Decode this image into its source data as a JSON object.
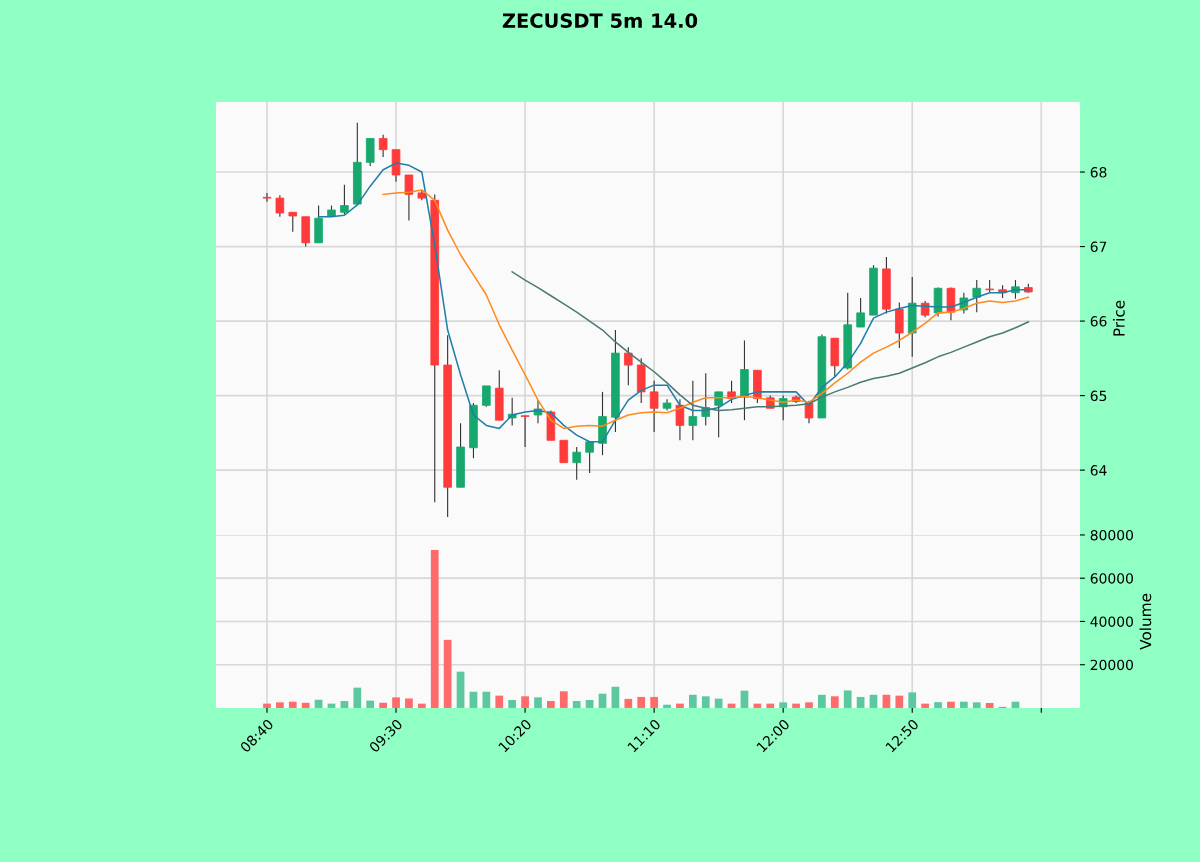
{
  "chart_data": [
    {
      "type": "candlestick",
      "title": "ZECUSDT 5m 14.0",
      "ylabel": "Price",
      "grid": true,
      "tick_labels": "y",
      "x": [
        8.6667,
        8.75,
        8.8333,
        8.9167,
        9,
        9.0833,
        9.1667,
        9.25,
        9.3333,
        9.4167,
        9.5,
        9.5833,
        9.6667,
        9.75,
        9.8333,
        9.9167,
        10,
        10.0833,
        10.1667,
        10.25,
        10.3333,
        10.4167,
        10.5,
        10.5833,
        10.6667,
        10.75,
        10.8333,
        10.9167,
        11,
        11.0833,
        11.1667,
        11.25,
        11.3333,
        11.4167,
        11.5,
        11.5833,
        11.6667,
        11.75,
        11.8333,
        11.9167,
        12,
        12.0833,
        12.1667,
        12.25,
        12.3333,
        12.4167,
        12.5,
        12.5833,
        12.6667,
        12.75,
        12.8333,
        12.9167,
        13,
        13.0833,
        13.1667,
        13.25,
        13.3333,
        13.4167,
        13.5,
        13.5833
      ],
      "ohlc": [
        [
          67.66,
          67.72,
          67.6,
          67.65
        ],
        [
          67.65,
          67.69,
          67.4,
          67.45
        ],
        [
          67.46,
          67.46,
          67.2,
          67.41
        ],
        [
          67.4,
          67.4,
          67.0,
          67.05
        ],
        [
          67.05,
          67.55,
          67.05,
          67.38
        ],
        [
          67.41,
          67.55,
          67.4,
          67.49
        ],
        [
          67.46,
          67.83,
          67.43,
          67.55
        ],
        [
          67.57,
          68.66,
          67.55,
          68.13
        ],
        [
          68.13,
          68.45,
          68.08,
          68.45
        ],
        [
          68.45,
          68.5,
          68.2,
          68.3
        ],
        [
          68.3,
          68.3,
          67.87,
          67.96
        ],
        [
          67.96,
          67.96,
          67.35,
          67.7
        ],
        [
          67.72,
          67.75,
          67.62,
          67.65
        ],
        [
          67.62,
          67.7,
          63.57,
          65.41
        ],
        [
          65.41,
          65.81,
          63.37,
          63.77
        ],
        [
          63.77,
          64.63,
          63.77,
          64.31
        ],
        [
          64.3,
          64.9,
          64.16,
          64.87
        ],
        [
          64.87,
          65.13,
          64.85,
          65.13
        ],
        [
          65.1,
          65.34,
          64.67,
          64.67
        ],
        [
          64.7,
          64.97,
          64.6,
          64.75
        ],
        [
          64.73,
          64.73,
          64.31,
          64.72
        ],
        [
          64.74,
          64.94,
          64.63,
          64.82
        ],
        [
          64.78,
          64.8,
          64.4,
          64.4
        ],
        [
          64.4,
          64.4,
          64.1,
          64.1
        ],
        [
          64.1,
          64.31,
          63.87,
          64.24
        ],
        [
          64.24,
          64.38,
          63.96,
          64.38
        ],
        [
          64.36,
          65.05,
          64.2,
          64.72
        ],
        [
          64.71,
          65.88,
          64.51,
          65.57
        ],
        [
          65.57,
          65.65,
          65.14,
          65.41
        ],
        [
          65.41,
          65.5,
          64.9,
          65.05
        ],
        [
          65.05,
          65.2,
          64.51,
          64.83
        ],
        [
          64.83,
          64.95,
          64.8,
          64.9
        ],
        [
          64.87,
          64.95,
          64.4,
          64.6
        ],
        [
          64.6,
          65.2,
          64.4,
          64.72
        ],
        [
          64.72,
          65.3,
          64.6,
          64.84
        ],
        [
          64.87,
          65.05,
          64.44,
          65.05
        ],
        [
          65.05,
          65.2,
          64.9,
          64.96
        ],
        [
          64.98,
          65.74,
          64.67,
          65.35
        ],
        [
          65.34,
          65.34,
          64.9,
          64.96
        ],
        [
          64.97,
          65.0,
          64.83,
          64.83
        ],
        [
          64.85,
          65.0,
          64.67,
          64.96
        ],
        [
          64.98,
          65.0,
          64.9,
          64.92
        ],
        [
          64.9,
          64.93,
          64.63,
          64.7
        ],
        [
          64.7,
          65.82,
          64.7,
          65.79
        ],
        [
          65.77,
          65.77,
          65.25,
          65.4
        ],
        [
          65.37,
          66.38,
          65.35,
          65.95
        ],
        [
          65.92,
          66.31,
          65.92,
          66.11
        ],
        [
          66.08,
          66.75,
          66.08,
          66.71
        ],
        [
          66.7,
          66.86,
          66.1,
          66.16
        ],
        [
          66.16,
          66.25,
          65.64,
          65.84
        ],
        [
          65.84,
          66.59,
          65.52,
          66.24
        ],
        [
          66.24,
          66.27,
          66.05,
          66.08
        ],
        [
          66.11,
          66.45,
          66.06,
          66.44
        ],
        [
          66.44,
          66.45,
          66.01,
          66.12
        ],
        [
          66.15,
          66.38,
          66.1,
          66.31
        ],
        [
          66.32,
          66.55,
          66.12,
          66.44
        ],
        [
          66.43,
          66.55,
          66.38,
          66.42
        ],
        [
          66.42,
          66.48,
          66.31,
          66.38
        ],
        [
          66.38,
          66.55,
          66.3,
          66.46
        ],
        [
          66.45,
          66.5,
          66.38,
          66.39
        ]
      ],
      "colors": [
        "#ff3a3a",
        "#ff3a3a",
        "#ff3a3a",
        "#ff3a3a",
        "#17a86e",
        "#17a86e",
        "#17a86e",
        "#17a86e",
        "#17a86e",
        "#ff3a3a",
        "#ff3a3a",
        "#ff3a3a",
        "#ff3a3a",
        "#ff3a3a",
        "#ff3a3a",
        "#17a86e",
        "#17a86e",
        "#17a86e",
        "#ff3a3a",
        "#17a86e",
        "#ff3a3a",
        "#17a86e",
        "#ff3a3a",
        "#ff3a3a",
        "#17a86e",
        "#17a86e",
        "#17a86e",
        "#17a86e",
        "#ff3a3a",
        "#ff3a3a",
        "#ff3a3a",
        "#17a86e",
        "#ff3a3a",
        "#17a86e",
        "#17a86e",
        "#17a86e",
        "#ff3a3a",
        "#17a86e",
        "#ff3a3a",
        "#ff3a3a",
        "#17a86e",
        "#ff3a3a",
        "#ff3a3a",
        "#17a86e",
        "#ff3a3a",
        "#17a86e",
        "#17a86e",
        "#17a86e",
        "#ff3a3a",
        "#ff3a3a",
        "#17a86e",
        "#ff3a3a",
        "#17a86e",
        "#ff3a3a",
        "#17a86e",
        "#17a86e",
        "#ff3a3a",
        "#ff3a3a",
        "#17a86e",
        "#ff3a3a"
      ],
      "series": [
        {
          "type": "line",
          "color": "#1f7fa8",
          "x": [
            9,
            9.0833,
            9.1667,
            9.25,
            9.3333,
            9.4167,
            9.5,
            9.5833,
            9.6667,
            9.75,
            9.8333,
            9.9167,
            10,
            10.0833,
            10.1667,
            10.25,
            10.3333,
            10.4167,
            10.5,
            10.5833,
            10.6667,
            10.75,
            10.8333,
            10.9167,
            11,
            11.0833,
            11.1667,
            11.25,
            11.3333,
            11.4167,
            11.5,
            11.5833,
            11.6667,
            11.75,
            11.8333,
            11.9167,
            12,
            12.0833,
            12.1667,
            12.25,
            12.3333,
            12.4167,
            12.5,
            12.5833,
            12.6667,
            12.75,
            12.8333,
            12.9167,
            13,
            13.0833,
            13.1667,
            13.25,
            13.3333,
            13.4167,
            13.5,
            13.5833
          ],
          "values": [
            67.4,
            67.4,
            67.42,
            67.56,
            67.81,
            68.03,
            68.12,
            68.09,
            68.0,
            67.02,
            65.88,
            65.28,
            64.74,
            64.6,
            64.56,
            64.74,
            64.78,
            64.8,
            64.77,
            64.6,
            64.47,
            64.38,
            64.38,
            64.67,
            64.94,
            65.07,
            65.14,
            65.14,
            64.87,
            64.8,
            64.8,
            64.84,
            64.95,
            65.0,
            65.05,
            65.05,
            65.05,
            65.05,
            64.87,
            65.11,
            65.25,
            65.44,
            65.7,
            66.04,
            66.12,
            66.17,
            66.21,
            66.2,
            66.19,
            66.19,
            66.25,
            66.32,
            66.38,
            66.38,
            66.42,
            66.42
          ]
        },
        {
          "type": "line",
          "color": "#ff8a1c",
          "x": [
            9.4167,
            9.5,
            9.5833,
            9.6667,
            9.75,
            9.8333,
            9.9167,
            10,
            10.0833,
            10.1667,
            10.25,
            10.3333,
            10.4167,
            10.5,
            10.5833,
            10.6667,
            10.75,
            10.8333,
            10.9167,
            11,
            11.0833,
            11.1667,
            11.25,
            11.3333,
            11.4167,
            11.5,
            11.5833,
            11.6667,
            11.75,
            11.8333,
            11.9167,
            12,
            12.0833,
            12.1667,
            12.25,
            12.3333,
            12.4167,
            12.5,
            12.5833,
            12.6667,
            12.75,
            12.8333,
            12.9167,
            13,
            13.0833,
            13.1667,
            13.25,
            13.3333,
            13.4167,
            13.5,
            13.5833
          ],
          "values": [
            67.7,
            67.72,
            67.73,
            67.76,
            67.62,
            67.22,
            66.89,
            66.62,
            66.35,
            65.95,
            65.61,
            65.28,
            64.94,
            64.67,
            64.56,
            64.59,
            64.6,
            64.59,
            64.67,
            64.74,
            64.77,
            64.78,
            64.77,
            64.83,
            64.91,
            64.97,
            64.97,
            64.97,
            64.99,
            64.97,
            64.94,
            64.91,
            64.94,
            64.91,
            65.03,
            65.17,
            65.3,
            65.45,
            65.57,
            65.65,
            65.74,
            65.85,
            65.97,
            66.11,
            66.12,
            66.17,
            66.24,
            66.27,
            66.25,
            66.27,
            66.32
          ]
        },
        {
          "type": "line",
          "color": "#4a7a74",
          "x": [
            10.25,
            10.3333,
            10.4167,
            10.5,
            10.5833,
            10.6667,
            10.75,
            10.8333,
            10.9167,
            11,
            11.0833,
            11.1667,
            11.25,
            11.3333,
            11.4167,
            11.5,
            11.5833,
            11.6667,
            11.75,
            11.8333,
            11.9167,
            12,
            12.0833,
            12.1667,
            12.25,
            12.3333,
            12.4167,
            12.5,
            12.5833,
            12.6667,
            12.75,
            12.8333,
            12.9167,
            13,
            13.0833,
            13.1667,
            13.25,
            13.3333,
            13.4167,
            13.5,
            13.5833
          ],
          "values": [
            66.66,
            66.55,
            66.45,
            66.34,
            66.23,
            66.12,
            66.0,
            65.88,
            65.72,
            65.58,
            65.45,
            65.32,
            65.17,
            65.01,
            64.87,
            64.83,
            64.8,
            64.81,
            64.83,
            64.85,
            64.85,
            64.86,
            64.87,
            64.89,
            64.98,
            65.05,
            65.11,
            65.18,
            65.23,
            65.26,
            65.3,
            65.37,
            65.44,
            65.52,
            65.58,
            65.65,
            65.72,
            65.79,
            65.84,
            65.91,
            65.99
          ]
        }
      ],
      "xlim": [
        8.3375,
        13.9167
      ],
      "xticks": [
        {
          "value": 8.6667,
          "label": null
        },
        {
          "value": 9.5,
          "label": null
        },
        {
          "value": 10.3333,
          "label": null
        },
        {
          "value": 11.1667,
          "label": null
        },
        {
          "value": 12,
          "label": null
        },
        {
          "value": 12.8333,
          "label": null
        },
        {
          "value": 13.6667,
          "label": null
        }
      ],
      "ylim": [
        63.13,
        68.94
      ],
      "yticks": [
        64,
        65,
        66,
        67,
        68
      ]
    },
    {
      "type": "bar",
      "ylabel": "Volume",
      "grid": true,
      "x": [
        8.6667,
        8.75,
        8.8333,
        8.9167,
        9,
        9.0833,
        9.1667,
        9.25,
        9.3333,
        9.4167,
        9.5,
        9.5833,
        9.6667,
        9.75,
        9.8333,
        9.9167,
        10,
        10.0833,
        10.1667,
        10.25,
        10.3333,
        10.4167,
        10.5,
        10.5833,
        10.6667,
        10.75,
        10.8333,
        10.9167,
        11,
        11.0833,
        11.1667,
        11.25,
        11.3333,
        11.4167,
        11.5,
        11.5833,
        11.6667,
        11.75,
        11.8333,
        11.9167,
        12,
        12.0833,
        12.1667,
        12.25,
        12.3333,
        12.4167,
        12.5,
        12.5833,
        12.6667,
        12.75,
        12.8333,
        12.9167,
        13,
        13.0833,
        13.1667,
        13.25,
        13.3333,
        13.4167,
        13.5
      ],
      "values": [
        2000,
        2600,
        2900,
        2400,
        3800,
        2000,
        3200,
        9400,
        3400,
        2400,
        4900,
        4400,
        2000,
        73000,
        31500,
        16800,
        7500,
        7500,
        5700,
        3700,
        5400,
        4900,
        3200,
        7700,
        3200,
        3700,
        6600,
        9800,
        4200,
        5100,
        5100,
        1500,
        2000,
        6100,
        5400,
        4300,
        2000,
        8000,
        2000,
        2000,
        2600,
        2000,
        2600,
        6100,
        5400,
        8100,
        5100,
        6100,
        6100,
        5700,
        7200,
        2000,
        2700,
        2900,
        2900,
        2600,
        2300,
        500,
        2900
      ],
      "colors": [
        "#ff6b6b",
        "#ff6b6b",
        "#ff6b6b",
        "#ff6b6b",
        "#5cc8a0",
        "#5cc8a0",
        "#5cc8a0",
        "#5cc8a0",
        "#5cc8a0",
        "#ff6b6b",
        "#ff6b6b",
        "#ff6b6b",
        "#ff6b6b",
        "#ff6b6b",
        "#ff6b6b",
        "#5cc8a0",
        "#5cc8a0",
        "#5cc8a0",
        "#ff6b6b",
        "#5cc8a0",
        "#ff6b6b",
        "#5cc8a0",
        "#ff6b6b",
        "#ff6b6b",
        "#5cc8a0",
        "#5cc8a0",
        "#5cc8a0",
        "#5cc8a0",
        "#ff6b6b",
        "#ff6b6b",
        "#ff6b6b",
        "#5cc8a0",
        "#ff6b6b",
        "#5cc8a0",
        "#5cc8a0",
        "#5cc8a0",
        "#ff6b6b",
        "#5cc8a0",
        "#ff6b6b",
        "#ff6b6b",
        "#5cc8a0",
        "#ff6b6b",
        "#ff6b6b",
        "#5cc8a0",
        "#ff6b6b",
        "#5cc8a0",
        "#5cc8a0",
        "#5cc8a0",
        "#ff6b6b",
        "#ff6b6b",
        "#5cc8a0",
        "#ff6b6b",
        "#5cc8a0",
        "#ff6b6b",
        "#5cc8a0",
        "#5cc8a0",
        "#ff6b6b",
        "#ff6b6b",
        "#5cc8a0"
      ],
      "xlim": [
        8.3375,
        13.9167
      ],
      "xticks": [
        {
          "value": 8.6667,
          "label": "08:40"
        },
        {
          "value": 9.5,
          "label": "09:30"
        },
        {
          "value": 10.3333,
          "label": "10:20"
        },
        {
          "value": 11.1667,
          "label": "11:10"
        },
        {
          "value": 12,
          "label": "12:00"
        },
        {
          "value": 12.8333,
          "label": "12:50"
        },
        {
          "value": 13.6667,
          "label": null
        }
      ],
      "ylim": [
        0,
        80000
      ],
      "yticks": [
        20000,
        40000,
        60000,
        80000
      ]
    }
  ]
}
